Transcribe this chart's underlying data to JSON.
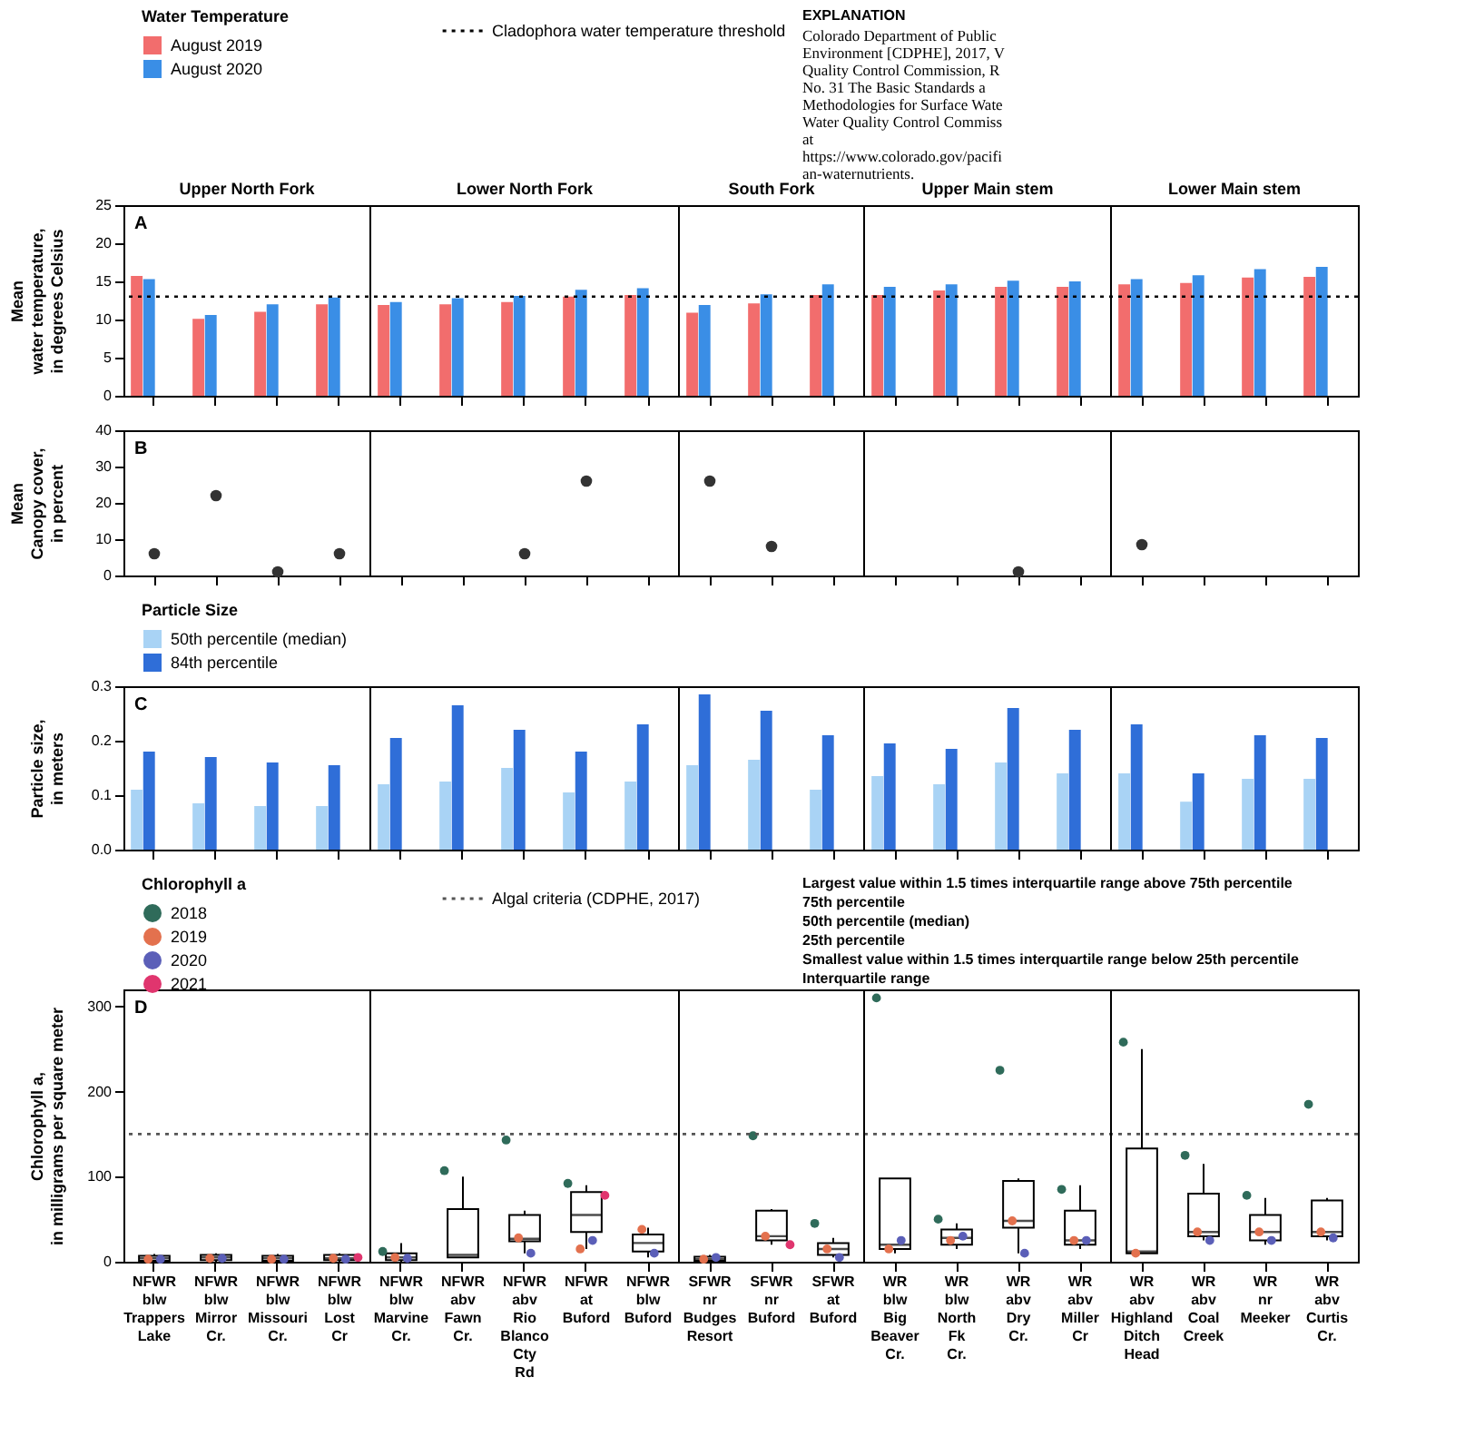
{
  "chart_data": [
    {
      "type": "bar",
      "ylabel": "Mean\nwater temperature,\nin degrees Celsius",
      "legend_title": "Water Temperature",
      "legend": "top",
      "tick_labels": "y",
      "grid": false,
      "categories": [
        null,
        null,
        null,
        null,
        null,
        null,
        null,
        null,
        null,
        null,
        null,
        null,
        null,
        null,
        null,
        null,
        null,
        null,
        null,
        null
      ],
      "series": [
        {
          "name": "August 2019",
          "color": "#f26d6d",
          "values": [
            15.7,
            10.1,
            11.0,
            12.0,
            11.9,
            12.0,
            12.3,
            13.0,
            13.2,
            10.9,
            12.1,
            13.2,
            13.2,
            13.8,
            14.3,
            14.3,
            14.6,
            14.8,
            15.5,
            15.6
          ]
        },
        {
          "name": "August 2020",
          "color": "#3a8ee6",
          "values": [
            15.3,
            10.6,
            12.0,
            12.9,
            12.3,
            12.8,
            13.1,
            13.9,
            14.1,
            11.9,
            13.3,
            14.6,
            14.3,
            14.6,
            15.1,
            15.0,
            15.3,
            15.8,
            16.6,
            16.9
          ]
        }
      ],
      "ylim": [
        0,
        25
      ],
      "yticks": [
        0,
        5,
        10,
        15,
        20,
        25
      ],
      "ref_lines": [
        {
          "axis": "y",
          "value": 13,
          "label": "Cladophora water temperature threshold",
          "line_style": "dotted",
          "color": "#000000"
        }
      ],
      "annotations": [
        "A",
        "Upper North Fork",
        "Lower North Fork",
        "South Fork",
        "Upper Main stem",
        "Lower Main stem",
        "EXPLANATION",
        "Colorado Department of Public\nEnvironment [CDPHE], 2017, V\nQuality Control Commission, R\nNo. 31    The Basic Standards a\nMethodologies for Surface Wate\nWater Quality Control Commiss\nat\nhttps://www.colorado.gov/pacifi\nan-waternutrients."
      ]
    },
    {
      "type": "scatter",
      "ylabel": "Mean\nCanopy cover,\nin percent",
      "tick_labels": "y",
      "grid": false,
      "marker": "circle",
      "color": "#333333",
      "categories": [
        null,
        null,
        null,
        null,
        null,
        null,
        null,
        null,
        null,
        null,
        null,
        null,
        null,
        null,
        null,
        null,
        null,
        null,
        null,
        null
      ],
      "values": [
        6,
        22,
        1,
        6,
        null,
        null,
        6,
        26,
        null,
        26,
        8,
        null,
        null,
        null,
        1,
        null,
        8.5,
        null,
        null,
        null
      ],
      "ylim": [
        0,
        40
      ],
      "yticks": [
        0,
        10,
        20,
        30,
        40
      ],
      "annotations": [
        "B"
      ]
    },
    {
      "type": "bar",
      "ylabel": "Particle size,\nin meters",
      "legend_title": "Particle Size",
      "legend": "top",
      "tick_labels": "y",
      "grid": false,
      "categories": [
        null,
        null,
        null,
        null,
        null,
        null,
        null,
        null,
        null,
        null,
        null,
        null,
        null,
        null,
        null,
        null,
        null,
        null,
        null,
        null
      ],
      "series": [
        {
          "name": "50th percentile (median)",
          "color": "#a9d3f5",
          "values": [
            0.11,
            0.085,
            0.08,
            0.08,
            0.12,
            0.125,
            0.15,
            0.105,
            0.125,
            0.155,
            0.165,
            0.11,
            0.135,
            0.12,
            0.16,
            0.14,
            0.14,
            0.088,
            0.13,
            0.13
          ]
        },
        {
          "name": "84th percentile",
          "color": "#2f6ed8",
          "values": [
            0.18,
            0.17,
            0.16,
            0.155,
            0.205,
            0.265,
            0.22,
            0.18,
            0.23,
            0.285,
            0.255,
            0.21,
            0.195,
            0.185,
            0.26,
            0.22,
            0.23,
            0.14,
            0.21,
            0.205
          ]
        }
      ],
      "ylim": [
        0,
        0.3
      ],
      "yticks": [
        {
          "value": 0,
          "label": "0.0"
        },
        0.1,
        0.2,
        0.3
      ],
      "annotations": [
        "C"
      ]
    },
    {
      "type": "box",
      "ylabel": "Chlorophyll a,\nin milligrams per square meter",
      "legend_title": "Chlorophyll a",
      "legend": "top",
      "grid": false,
      "color": "#000000",
      "categories": [
        "NFWR blw Trappers Lake",
        "NFWR blw Mirror Cr.",
        "NFWR blw Missouri Cr.",
        "NFWR blw Lost Cr",
        "NFWR blw Marvine Cr.",
        "NFWR abv Fawn Cr.",
        "NFWR abv Rio Blanco Cty Rd",
        "NFWR at Buford",
        "NFWR blw Buford",
        "SFWR nr Budges Resort",
        "SFWR nr Buford",
        "SFWR at Buford",
        "WR blw Big Beaver Cr.",
        "WR blw North Fk Cr.",
        "WR abv Dry Cr.",
        "WR abv Miller Cr",
        "WR abv Highland Ditch Head",
        "WR abv Coal Creek",
        "WR nr Meeker",
        "WR abv Curtis Cr."
      ],
      "boxes": [
        {
          "low": 0,
          "q1": 1,
          "median": 4,
          "q3": 7,
          "high": 9
        },
        {
          "low": 0,
          "q1": 2,
          "median": 5,
          "q3": 8,
          "high": 10
        },
        {
          "low": 0,
          "q1": 1,
          "median": 4,
          "q3": 7,
          "high": 9
        },
        {
          "low": 0,
          "q1": 2,
          "median": 4,
          "q3": 8,
          "high": 10
        },
        {
          "low": 0,
          "q1": 2,
          "median": 5,
          "q3": 10,
          "high": 22
        },
        {
          "low": 5,
          "q1": 5,
          "median": 8,
          "q3": 62,
          "high": 100
        },
        {
          "low": 10,
          "q1": 24,
          "median": 27,
          "q3": 55,
          "high": 60
        },
        {
          "low": 15,
          "q1": 35,
          "median": 55,
          "q3": 82,
          "high": 90
        },
        {
          "low": 5,
          "q1": 12,
          "median": 22,
          "q3": 32,
          "high": 40
        },
        {
          "low": 0,
          "q1": 1,
          "median": 3,
          "q3": 6,
          "high": 8
        },
        {
          "low": 20,
          "q1": 25,
          "median": 30,
          "q3": 60,
          "high": 62
        },
        {
          "low": 5,
          "q1": 8,
          "median": 15,
          "q3": 22,
          "high": 28
        },
        {
          "low": 10,
          "q1": 15,
          "median": 20,
          "q3": 98,
          "high": 98
        },
        {
          "low": 15,
          "q1": 20,
          "median": 28,
          "q3": 38,
          "high": 45
        },
        {
          "low": 10,
          "q1": 40,
          "median": 48,
          "q3": 95,
          "high": 98
        },
        {
          "low": 15,
          "q1": 20,
          "median": 25,
          "q3": 60,
          "high": 90
        },
        {
          "low": 10,
          "q1": 10,
          "median": 12,
          "q3": 133,
          "high": 250
        },
        {
          "low": 25,
          "q1": 30,
          "median": 35,
          "q3": 80,
          "high": 115
        },
        {
          "low": 20,
          "q1": 25,
          "median": 35,
          "q3": 55,
          "high": 75
        },
        {
          "low": 25,
          "q1": 30,
          "median": 35,
          "q3": 72,
          "high": 75
        }
      ],
      "series": [
        {
          "name": "2018",
          "type": "scatter",
          "color": "#2f6b5a",
          "values": [
            null,
            null,
            null,
            null,
            12,
            107,
            143,
            92,
            null,
            null,
            148,
            45,
            310,
            50,
            225,
            85,
            258,
            125,
            78,
            185
          ]
        },
        {
          "name": "2019",
          "type": "scatter",
          "color": "#e3714e",
          "values": [
            3,
            4,
            3,
            4,
            5,
            null,
            28,
            15,
            38,
            3,
            30,
            15,
            15,
            25,
            48,
            25,
            10,
            35,
            35,
            35
          ]
        },
        {
          "name": "2020",
          "type": "scatter",
          "color": "#5b5fb8",
          "values": [
            3,
            4,
            3,
            3,
            4,
            null,
            10,
            25,
            10,
            5,
            null,
            5,
            25,
            30,
            10,
            25,
            null,
            25,
            25,
            28
          ]
        },
        {
          "name": "2021",
          "type": "scatter",
          "color": "#e0356e",
          "values": [
            null,
            null,
            null,
            5,
            null,
            null,
            null,
            78,
            null,
            null,
            20,
            null,
            null,
            null,
            null,
            null,
            null,
            null,
            null,
            null
          ]
        }
      ],
      "ylim": [
        0,
        320
      ],
      "yticks": [
        0,
        100,
        200,
        300
      ],
      "ref_lines": [
        {
          "axis": "y",
          "value": 150,
          "label": "Algal criteria (CDPHE, 2017)",
          "line_style": "dotted",
          "color": "#555555"
        }
      ],
      "annotations": [
        "D",
        "Largest value within 1.5 times interquartile range above 75th percentile",
        "75th percentile",
        "50th percentile (median)",
        "25th percentile",
        "Smallest value within 1.5 times interquartile range below 25th percentile",
        "Interquartile range"
      ]
    }
  ]
}
